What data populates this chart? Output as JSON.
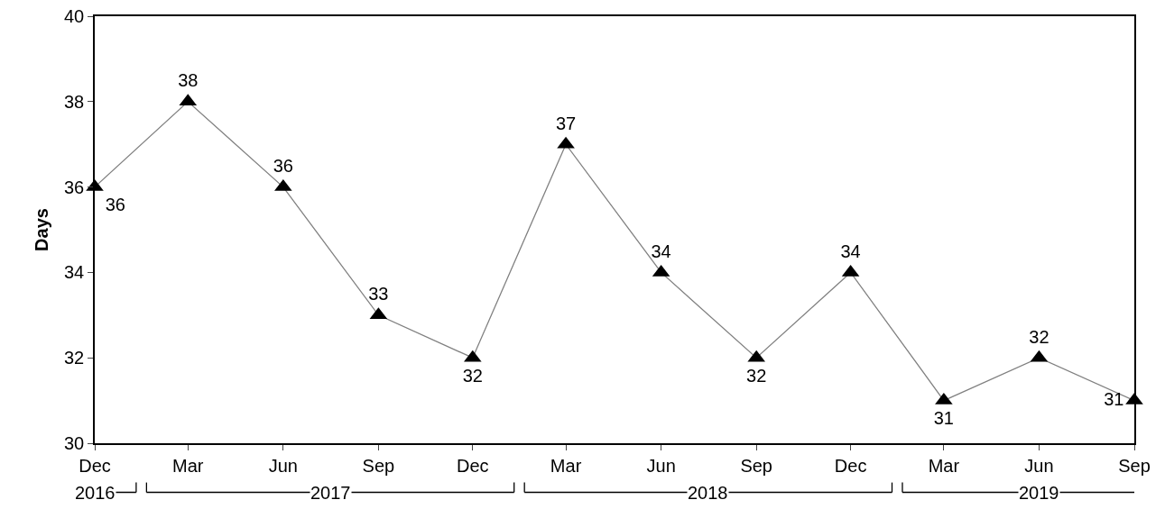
{
  "chart_data": {
    "type": "line",
    "ylabel": "Days",
    "x": [
      "2016-12",
      "2017-03",
      "2017-06",
      "2017-09",
      "2017-12",
      "2018-03",
      "2018-06",
      "2018-09",
      "2018-12",
      "2019-03",
      "2019-06",
      "2019-09"
    ],
    "series": [
      {
        "color": "#000000",
        "values": [
          36,
          38,
          36,
          33,
          32,
          37,
          34,
          32,
          34,
          31,
          32,
          31
        ]
      }
    ],
    "xlim": [
      "2016-12",
      "2019-09"
    ],
    "xticks": [
      {
        "value": "2016-12",
        "label": "Dec"
      },
      {
        "value": "2017-03",
        "label": "Mar"
      },
      {
        "value": "2017-06",
        "label": "Jun"
      },
      {
        "value": "2017-09",
        "label": "Sep"
      },
      {
        "value": "2017-12",
        "label": "Dec"
      },
      {
        "value": "2018-03",
        "label": "Mar"
      },
      {
        "value": "2018-06",
        "label": "Jun"
      },
      {
        "value": "2018-09",
        "label": "Sep"
      },
      {
        "value": "2018-12",
        "label": "Dec"
      },
      {
        "value": "2019-03",
        "label": "Mar"
      },
      {
        "value": "2019-06",
        "label": "Jun"
      },
      {
        "value": "2019-09",
        "label": "Sep"
      }
    ],
    "ylim": [
      30,
      40
    ],
    "yticks": [
      30,
      32,
      34,
      36,
      38,
      40
    ],
    "annotations": [
      "2016",
      "2017",
      "2018",
      "2019"
    ],
    "marker": "triangle",
    "line_style": "solid",
    "data_labels": true,
    "grid": false
  }
}
